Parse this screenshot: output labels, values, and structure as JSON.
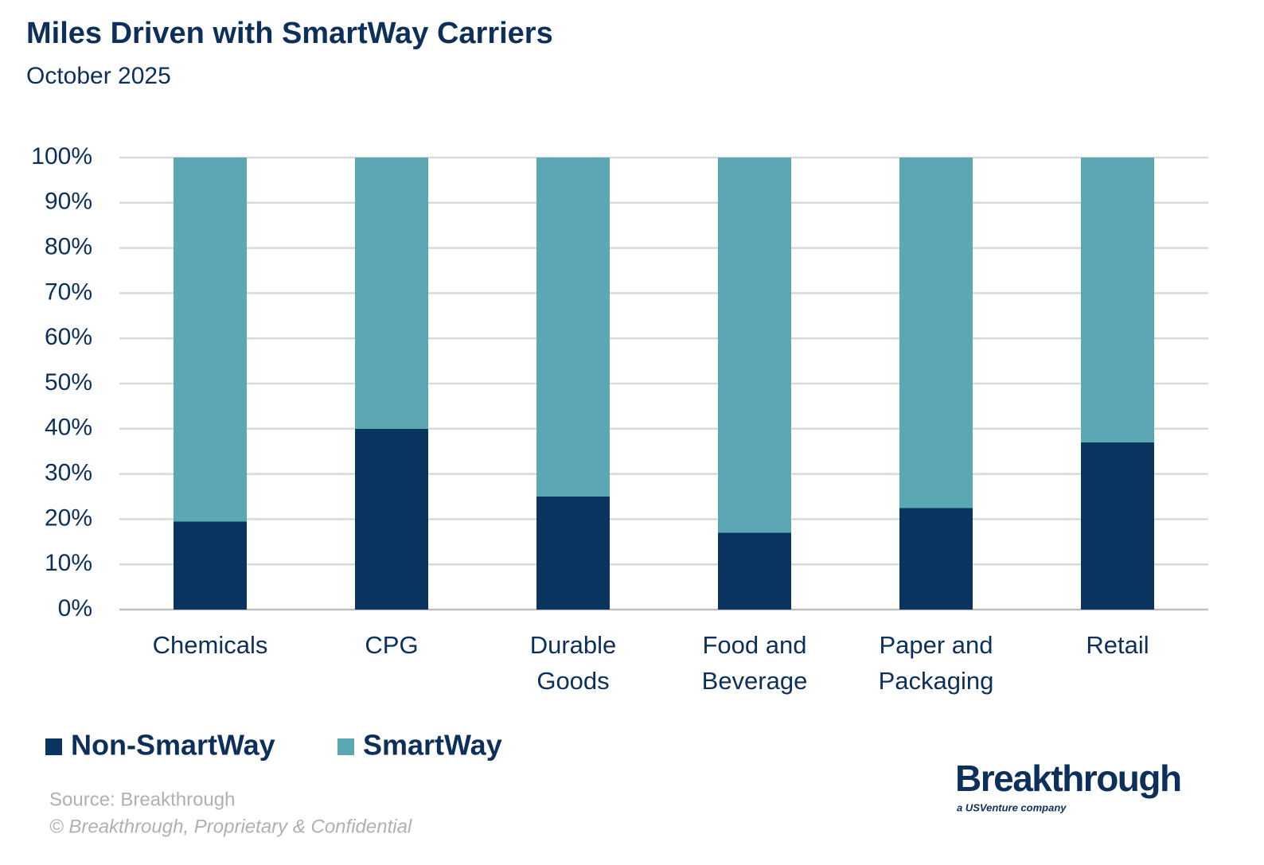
{
  "chart_data": {
    "type": "stacked_bar",
    "title": "Miles Driven with SmartWay Carriers",
    "subtitle": "October 2025",
    "categories": [
      "Chemicals",
      "CPG",
      "Durable Goods",
      "Food and Beverage",
      "Paper and Packaging",
      "Retail"
    ],
    "series": [
      {
        "name": "Non-SmartWay",
        "color": "#0a3560",
        "values": [
          19.5,
          40,
          25,
          17,
          22.5,
          37
        ]
      },
      {
        "name": "SmartWay",
        "color": "#5ba7b3",
        "values": [
          80.5,
          60,
          75,
          83,
          77.5,
          63
        ]
      }
    ],
    "ylim": [
      0,
      100
    ],
    "yticks": [
      {
        "value": 0,
        "label": "0%"
      },
      {
        "value": 10,
        "label": "10%"
      },
      {
        "value": 20,
        "label": "20%"
      },
      {
        "value": 30,
        "label": "30%"
      },
      {
        "value": 40,
        "label": "40%"
      },
      {
        "value": 50,
        "label": "50%"
      },
      {
        "value": 60,
        "label": "60%"
      },
      {
        "value": 70,
        "label": "70%"
      },
      {
        "value": 80,
        "label": "80%"
      },
      {
        "value": 90,
        "label": "90%"
      },
      {
        "value": 100,
        "label": "100%"
      }
    ],
    "grid": true,
    "legend": "bottom-left",
    "source": "Source: Breakthrough",
    "copyright": "© Breakthrough, Proprietary & Confidential",
    "logo": "Breakthrough",
    "logo_tagline": "a USVenture company"
  }
}
